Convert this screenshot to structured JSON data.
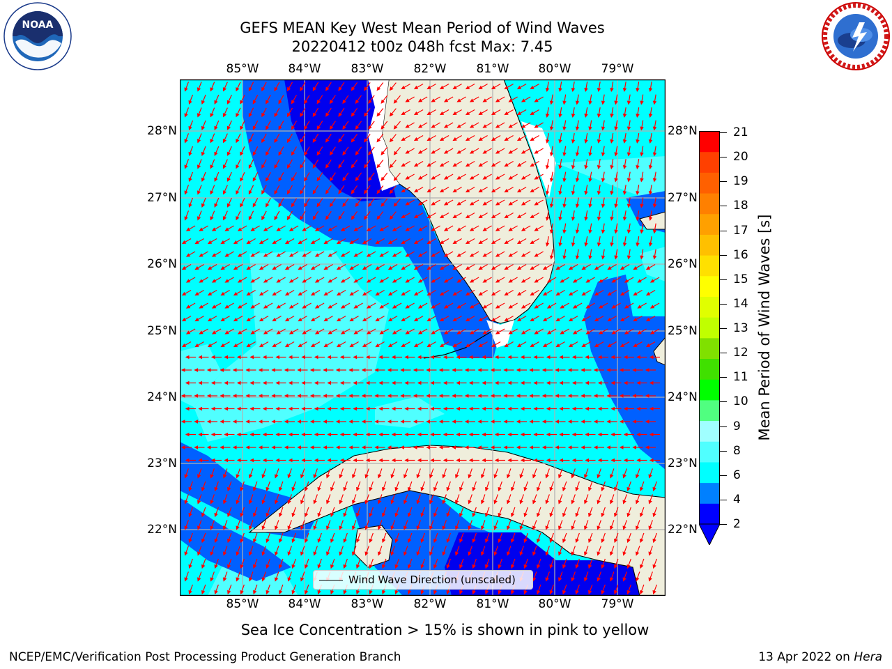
{
  "title_line1": "GEFS MEAN Key West Mean Period of Wind Waves",
  "title_line2": "20220412 t00z 048h fcst   Max: 7.45",
  "lon_labels": [
    "85°W",
    "84°W",
    "83°W",
    "82°W",
    "81°W",
    "80°W",
    "79°W"
  ],
  "lat_labels": [
    "28°N",
    "27°N",
    "26°N",
    "25°N",
    "24°N",
    "23°N",
    "22°N"
  ],
  "legend_text": "Wind Wave Direction (unscaled)",
  "colorbar": {
    "label": "Mean Period of Wind Waves [s]",
    "ticks": [
      "21",
      "20",
      "19",
      "18",
      "17",
      "16",
      "15",
      "14",
      "13",
      "12",
      "11",
      "10",
      "9",
      "8",
      "6",
      "4",
      "2"
    ],
    "colors": [
      "#0000ff",
      "#0080ff",
      "#00ffff",
      "#50ffff",
      "#a0ffff",
      "#50ff80",
      "#00ff00",
      "#40e000",
      "#80e000",
      "#c0ff00",
      "#e0ff00",
      "#ffff00",
      "#ffe000",
      "#ffc000",
      "#ffa000",
      "#ff8000",
      "#ff6000",
      "#ff4000",
      "#ff0000"
    ],
    "extend_color": "#0000ff"
  },
  "colors": {
    "land": "#efeedc",
    "level_2_4": "#0060ff",
    "level_0_2": "#0000ee",
    "level_4_6": "#00ffff",
    "level_6_8": "#50ffff",
    "arrow": "#ff0000"
  },
  "bottom_note": "Sea Ice Concentration > 15% is shown in pink to yellow",
  "footer_left": "NCEP/EMC/Verification Post Processing Product Generation Branch",
  "footer_right_prefix": "13 Apr 2022 on ",
  "footer_right_host": "Hera",
  "logos": {
    "left": "noaa-logo",
    "right": "nws-logo"
  }
}
